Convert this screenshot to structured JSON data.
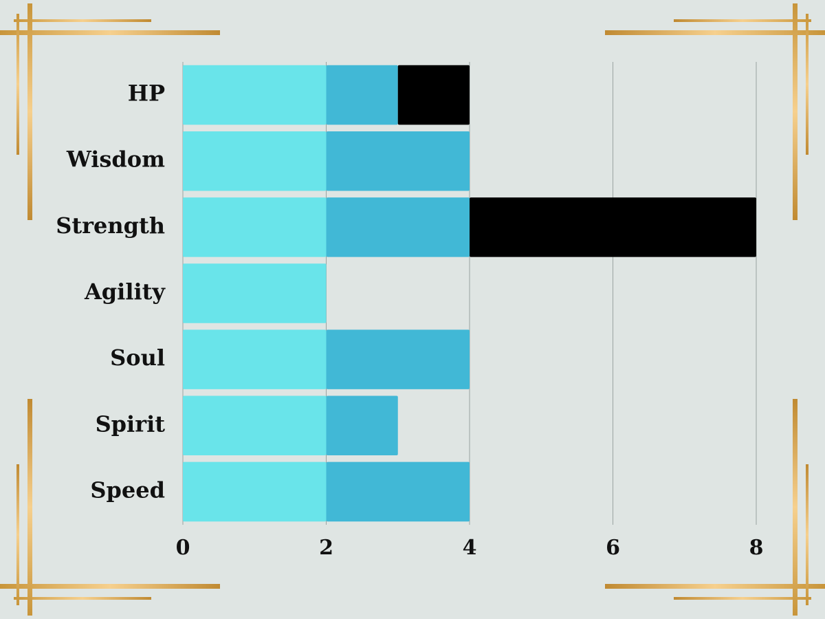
{
  "chart_data": {
    "type": "stacked-bar",
    "orientation": "horizontal",
    "categories": [
      "HP",
      "Wisdom",
      "Strength",
      "Agility",
      "Soul",
      "Spirit",
      "Speed"
    ],
    "series": [
      {
        "color": "#69e4ea",
        "values": [
          2,
          2,
          2,
          2,
          2,
          2,
          2
        ]
      },
      {
        "color": "#41b8d6",
        "values": [
          1,
          2,
          2,
          0,
          2,
          1,
          2
        ]
      },
      {
        "color": "#000000",
        "values": [
          1,
          0,
          4,
          0,
          0,
          0,
          0
        ]
      }
    ],
    "xlim": [
      0,
      8
    ],
    "xticks": [
      0,
      2,
      4,
      6,
      8
    ],
    "grid": true
  }
}
